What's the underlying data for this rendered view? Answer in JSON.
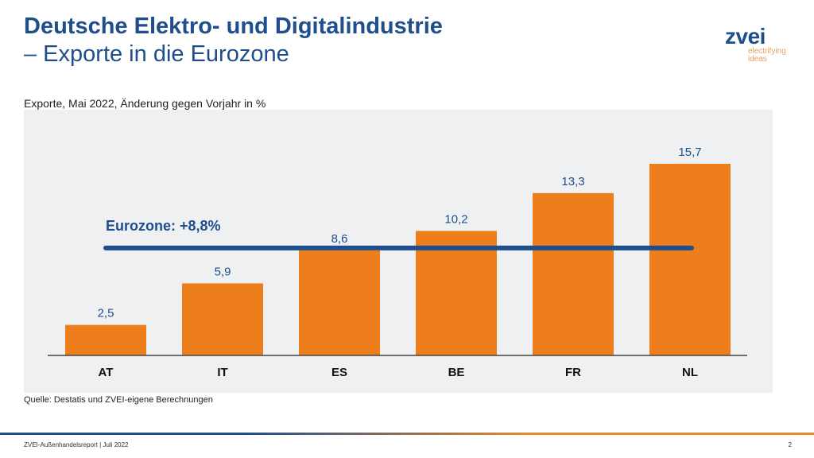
{
  "header": {
    "title_line1": "Deutsche Elektro- und Digitalindustrie",
    "title_line2": "– Exporte in die Eurozone"
  },
  "logo": {
    "text": "zvei",
    "tagline_1": "electrifying",
    "tagline_2": "ideas"
  },
  "colors": {
    "bar": "#ee7d1b",
    "line": "#1f4e8c",
    "title": "#1f4e8c",
    "plot_bg": "#eef0f1"
  },
  "chart_data": {
    "type": "bar",
    "title": "Exporte, Mai 2022, Änderung gegen Vorjahr in %",
    "categories": [
      "AT",
      "IT",
      "ES",
      "BE",
      "FR",
      "NL"
    ],
    "values": [
      2.5,
      5.9,
      8.6,
      10.2,
      13.3,
      15.7
    ],
    "data_labels": [
      "2,5",
      "5,9",
      "8,6",
      "10,2",
      "13,3",
      "15,7"
    ],
    "reference_line": {
      "label": "Eurozone: +8,8%",
      "value": 8.8
    },
    "ylim": [
      0,
      17
    ],
    "grid": false
  },
  "source": "Quelle: Destatis und ZVEI-eigene Berechnungen",
  "footer": {
    "text": "ZVEI-Außenhandelsreport | Juli 2022",
    "page": "2"
  }
}
